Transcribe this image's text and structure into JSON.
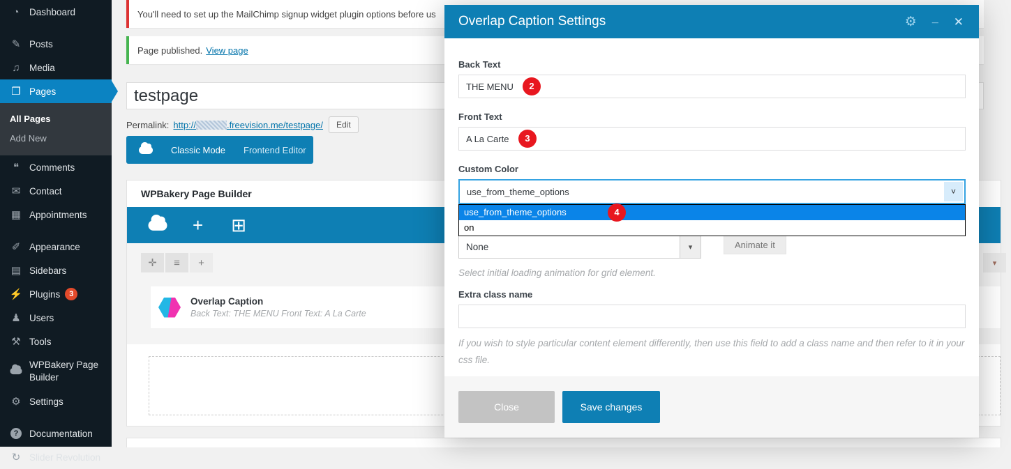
{
  "colors": {
    "accent_blue": "#0e7fb4",
    "sidebar_active_blue": "#0b83c2",
    "selection_blue": "#0a84e8",
    "badge_red": "#e8171f",
    "plugins_badge_orange": "#e24a2b",
    "notice_error_red": "#dc3232",
    "notice_success_green": "#46b450",
    "link_blue": "#0073aa"
  },
  "icons": {
    "dashboard": "◔",
    "posts": "✎",
    "media": "♫",
    "pages": "❐",
    "comments": "❝",
    "contact": "✉",
    "appointments": "▦",
    "appearance": "✐",
    "sidebars": "▤",
    "plugins": "⚡",
    "users": "♟",
    "tools": "⚒",
    "settings": "⚙",
    "documentation": "?",
    "slider_revolution": "↻",
    "toolbar_plus": "+",
    "toolbar_layout": "⊞",
    "tab_move": "✛",
    "tab_rows": "≡",
    "tab_plus": "+",
    "caret_down": "▾",
    "chevron_down": "˅",
    "gear": "⚙",
    "minimize": "_",
    "close": "✕"
  },
  "sidebar": {
    "items": [
      {
        "label": "Dashboard"
      },
      {
        "label": "Posts"
      },
      {
        "label": "Media"
      },
      {
        "label": "Pages",
        "active": true
      },
      {
        "label": "Comments"
      },
      {
        "label": "Contact"
      },
      {
        "label": "Appointments"
      },
      {
        "label": "Appearance"
      },
      {
        "label": "Sidebars"
      },
      {
        "label": "Plugins",
        "badge": "3"
      },
      {
        "label": "Users"
      },
      {
        "label": "Tools"
      },
      {
        "label": "WPBakery Page Builder"
      },
      {
        "label": "Settings"
      },
      {
        "label": "Documentation"
      },
      {
        "label": "Slider Revolution"
      }
    ],
    "pages_submenu": [
      "All Pages",
      "Add New"
    ]
  },
  "notices": [
    {
      "text": "You'll need to set up the MailChimp signup widget plugin options before us"
    },
    {
      "text": "Page published.",
      "link_label": "View page"
    }
  ],
  "editor": {
    "title_value": "testpage",
    "permalink_label": "Permalink:",
    "permalink_prefix": "http://",
    "permalink_suffix": ".freevision.me/testpage/",
    "edit_button": "Edit",
    "mode_tabs": [
      "Classic Mode",
      "Frontend Editor"
    ],
    "metabox_title": "WPBakery Page Builder",
    "element": {
      "title": "Overlap Caption",
      "meta": "Back Text: THE MENU  Front Text: A La Carte"
    }
  },
  "modal": {
    "title": "Overlap Caption Settings",
    "back_text": {
      "label": "Back Text",
      "value": "THE MENU",
      "badge": "2"
    },
    "front_text": {
      "label": "Front Text",
      "value": "A La Carte",
      "badge": "3"
    },
    "custom_color": {
      "label": "Custom Color",
      "value": "use_from_theme_options",
      "badge": "4",
      "options": [
        "use_from_theme_options",
        "on"
      ]
    },
    "animation": {
      "value": "None",
      "button": "Animate it",
      "help": "Select initial loading animation for grid element."
    },
    "extra_class": {
      "label": "Extra class name",
      "value": "",
      "help": "If you wish to style particular content element differently, then use this field to add a class name and then refer to it in your css file."
    },
    "footer": {
      "close": "Close",
      "save": "Save changes"
    }
  }
}
